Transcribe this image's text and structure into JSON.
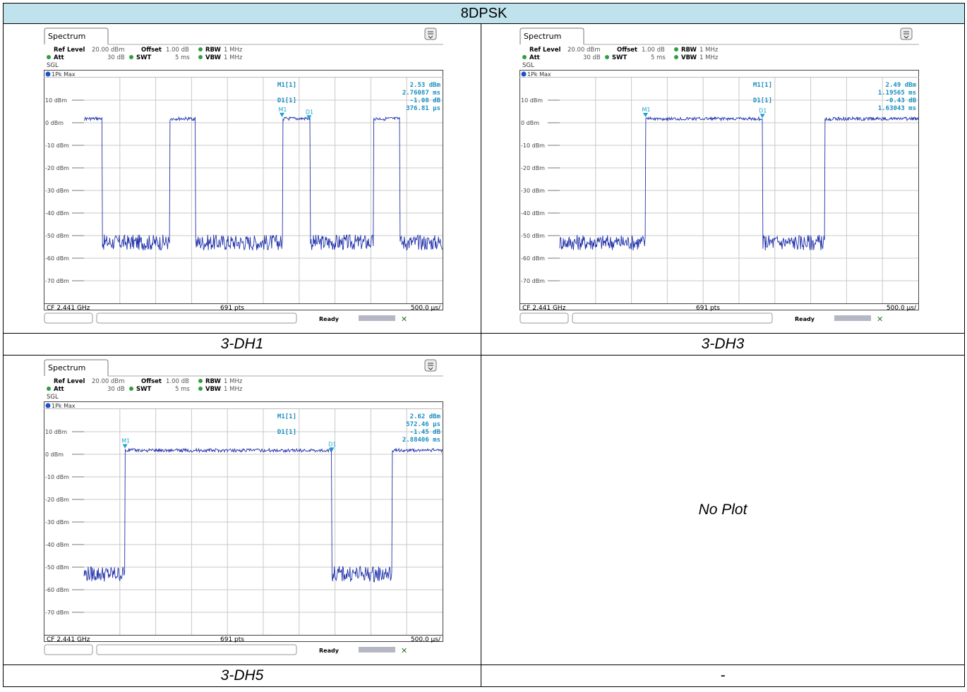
{
  "header": "8DPSK",
  "panels": [
    {
      "caption": "3-DH1",
      "ui": {
        "tab": "Spectrum",
        "ref_level_label": "Ref Level",
        "ref_level_value": "20.00 dBm",
        "offset_label": "Offset",
        "offset_value": "1.00 dB",
        "rbw_label": "RBW",
        "rbw_value": "1 MHz",
        "att_label": "Att",
        "att_value": "30 dB",
        "swt_label": "SWT",
        "swt_value": "5 ms",
        "vbw_label": "VBW",
        "vbw_value": "1 MHz",
        "sgl": "SGL",
        "trace": "1Pk Max",
        "cf": "CF 2.441 GHz",
        "pts": "691 pts",
        "span": "500.0 µs/",
        "status": "Ready"
      },
      "markers": {
        "m1_label": "M1[1]",
        "m1_level": "2.53 dBm",
        "m1_time": "2.76087 ms",
        "d1_label": "D1[1]",
        "d1_level": "-1.08 dB",
        "d1_time": "376.81 µs",
        "m1_tag": "M1",
        "d1_tag": "D1"
      },
      "chart_data": {
        "type": "line",
        "xlim": [
          0,
          5
        ],
        "ylim": [
          -80,
          20
        ],
        "x_unit": "ms",
        "y_ticks": [
          "10 dBm",
          "0 dBm",
          "-10 dBm",
          "-20 dBm",
          "-30 dBm",
          "-40 dBm",
          "-50 dBm",
          "-60 dBm",
          "-70 dBm"
        ],
        "high_level_dbm": 2.5,
        "low_level_dbm": -53,
        "on_intervals_ms": [
          [
            0.0,
            0.25
          ],
          [
            0.0,
            0.0
          ],
          [
            1.2,
            1.55
          ],
          [
            2.77,
            3.15
          ],
          [
            4.04,
            4.4
          ]
        ],
        "markers": [
          {
            "name": "M1",
            "x_ms": 2.761,
            "y_dbm": 2.53
          },
          {
            "name": "D1",
            "x_ms": 3.138,
            "y_dbm": 1.45
          }
        ]
      }
    },
    {
      "caption": "3-DH3",
      "ui": {
        "tab": "Spectrum",
        "ref_level_label": "Ref Level",
        "ref_level_value": "20.00 dBm",
        "offset_label": "Offset",
        "offset_value": "1.00 dB",
        "rbw_label": "RBW",
        "rbw_value": "1 MHz",
        "att_label": "Att",
        "att_value": "30 dB",
        "swt_label": "SWT",
        "swt_value": "5 ms",
        "vbw_label": "VBW",
        "vbw_value": "1 MHz",
        "sgl": "SGL",
        "trace": "1Pk Max",
        "cf": "CF 2.441 GHz",
        "pts": "691 pts",
        "span": "500.0 µs/",
        "status": "Ready"
      },
      "markers": {
        "m1_label": "M1[1]",
        "m1_level": "2.49 dBm",
        "m1_time": "1.19565 ms",
        "d1_label": "D1[1]",
        "d1_level": "-0.43 dB",
        "d1_time": "1.63043 ms",
        "m1_tag": "M1",
        "d1_tag": "D1"
      },
      "chart_data": {
        "type": "line",
        "xlim": [
          0,
          5
        ],
        "ylim": [
          -80,
          20
        ],
        "x_unit": "ms",
        "y_ticks": [
          "10 dBm",
          "0 dBm",
          "-10 dBm",
          "-20 dBm",
          "-30 dBm",
          "-40 dBm",
          "-50 dBm",
          "-60 dBm",
          "-70 dBm"
        ],
        "high_level_dbm": 2.5,
        "low_level_dbm": -53,
        "on_intervals_ms": [
          [
            0.0,
            0.0
          ],
          [
            1.2,
            2.83
          ],
          [
            3.7,
            5.0
          ]
        ],
        "markers": [
          {
            "name": "M1",
            "x_ms": 1.196,
            "y_dbm": 2.49
          },
          {
            "name": "D1",
            "x_ms": 2.826,
            "y_dbm": 2.06
          }
        ]
      }
    },
    {
      "caption": "3-DH5",
      "ui": {
        "tab": "Spectrum",
        "ref_level_label": "Ref Level",
        "ref_level_value": "20.00 dBm",
        "offset_label": "Offset",
        "offset_value": "1.00 dB",
        "rbw_label": "RBW",
        "rbw_value": "1 MHz",
        "att_label": "Att",
        "att_value": "30 dB",
        "swt_label": "SWT",
        "swt_value": "5 ms",
        "vbw_label": "VBW",
        "vbw_value": "1 MHz",
        "sgl": "SGL",
        "trace": "1Pk Max",
        "cf": "CF 2.441 GHz",
        "pts": "691 pts",
        "span": "500.0 µs/",
        "status": "Ready"
      },
      "markers": {
        "m1_label": "M1[1]",
        "m1_level": "2.62 dBm",
        "m1_time": "572.46 µs",
        "d1_label": "D1[1]",
        "d1_level": "-1.45 dB",
        "d1_time": "2.88406 ms",
        "m1_tag": "M1",
        "d1_tag": "D1"
      },
      "chart_data": {
        "type": "line",
        "xlim": [
          0,
          5
        ],
        "ylim": [
          -80,
          20
        ],
        "x_unit": "ms",
        "y_ticks": [
          "10 dBm",
          "0 dBm",
          "-10 dBm",
          "-20 dBm",
          "-30 dBm",
          "-40 dBm",
          "-50 dBm",
          "-60 dBm",
          "-70 dBm"
        ],
        "high_level_dbm": 2.5,
        "low_level_dbm": -53,
        "on_intervals_ms": [
          [
            0.57,
            3.45
          ],
          [
            4.3,
            5.0
          ]
        ],
        "markers": [
          {
            "name": "M1",
            "x_ms": 0.572,
            "y_dbm": 2.62
          },
          {
            "name": "D1",
            "x_ms": 3.456,
            "y_dbm": 1.17
          }
        ]
      }
    }
  ],
  "no_plot": "No Plot",
  "empty_caption": "-"
}
